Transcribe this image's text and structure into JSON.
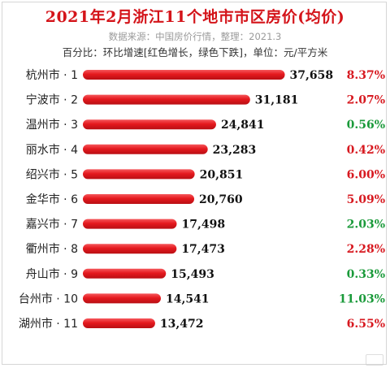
{
  "header": {
    "title": "2021年2月浙江11个地市市区房价(均价)",
    "subtitle": "数据来源：中国房价行情，整理：2021.3",
    "note": "百分比：环比增速[红色增长，绿色下跌]，单位：元/平方米"
  },
  "colors": {
    "bar": "#e5191e",
    "increase": "#d71920",
    "decrease": "#1a9a3a",
    "title": "#d4141a"
  },
  "chart_data": {
    "type": "bar",
    "orientation": "horizontal",
    "categories": [
      "杭州市 · 1",
      "宁波市 · 2",
      "温州市 · 3",
      "丽水市 · 4",
      "绍兴市 · 5",
      "金华市 · 6",
      "嘉兴市 · 7",
      "衢州市 · 8",
      "舟山市 · 9",
      "台州市 · 10",
      "湖州市 · 11"
    ],
    "values": [
      37658,
      31181,
      24841,
      23283,
      20851,
      20760,
      17498,
      17473,
      15493,
      14541,
      13472
    ],
    "value_labels": [
      "37,658",
      "31,181",
      "24,841",
      "23,283",
      "20,851",
      "20,760",
      "17,498",
      "17,473",
      "15,493",
      "14,541",
      "13,472"
    ],
    "change_labels": [
      "8.37%",
      "2.07%",
      "0.56%",
      "0.42%",
      "6.00%",
      "5.09%",
      "2.03%",
      "2.28%",
      "0.33%",
      "11.03%",
      "6.55%"
    ],
    "change_direction": [
      "up",
      "up",
      "down",
      "up",
      "up",
      "up",
      "down",
      "up",
      "down",
      "down",
      "up"
    ],
    "xlim": [
      0,
      40000
    ],
    "grid": false,
    "legend": "none"
  }
}
